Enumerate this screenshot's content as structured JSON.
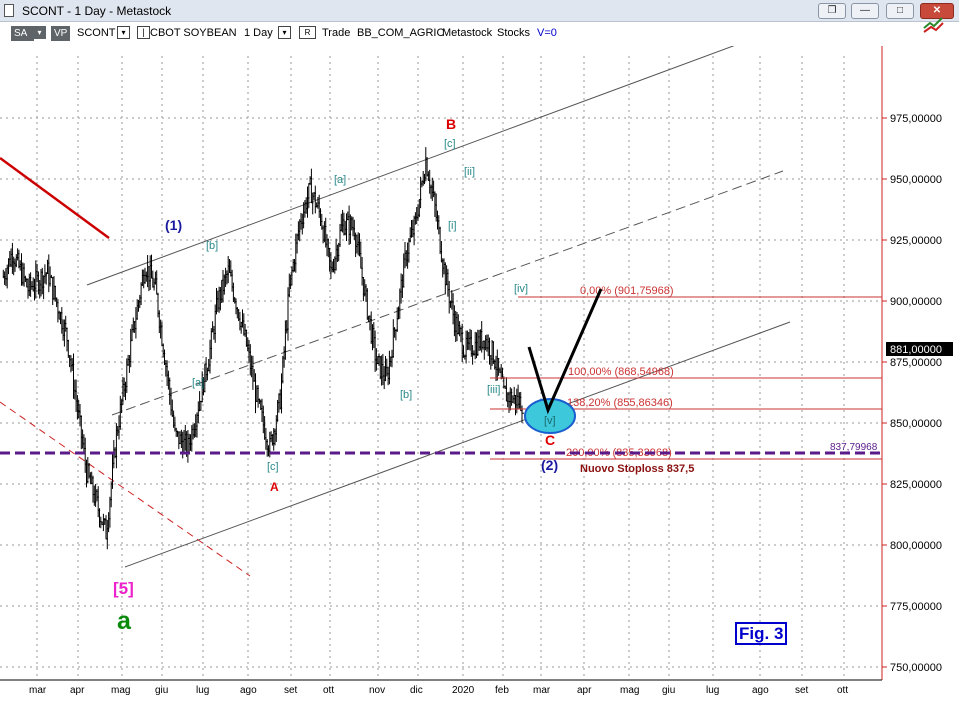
{
  "window": {
    "title": "SCONT - 1 Day - Metastock",
    "buttons": [
      "❐",
      "—",
      "□",
      "✕"
    ]
  },
  "toolbar": {
    "sa_label": "SA",
    "vp_label": "VP",
    "symbol": "SCONT",
    "dropdown_glyph": "▾",
    "description": "CBOT SOYBEAN",
    "period": "1 Day",
    "r_label": "R",
    "trade_label": "Trade",
    "name": "BB_COM_AGRIC",
    "source": "Metastock",
    "type": "Stocks",
    "volume_label": "V=0"
  },
  "chart_data": {
    "type": "candlestick",
    "y_axis": {
      "ticks": [
        "750,00000",
        "775,00000",
        "800,00000",
        "825,00000",
        "850,00000",
        "875,00000",
        "900,00000",
        "925,00000",
        "950,00000",
        "975,00000"
      ],
      "range": [
        742,
        1012
      ],
      "last_price": "881,00000"
    },
    "x_axis": {
      "labels": [
        "mar",
        "apr",
        "mag",
        "giu",
        "lug",
        "ago",
        "set",
        "ott",
        "nov",
        "dic",
        "2020",
        "feb",
        "mar",
        "apr",
        "mag",
        "giu",
        "lug",
        "ago",
        "set",
        "ott"
      ]
    },
    "price_path": [
      [
        1,
        910
      ],
      [
        8,
        920
      ],
      [
        20,
        905
      ],
      [
        35,
        912
      ],
      [
        50,
        885
      ],
      [
        65,
        830
      ],
      [
        80,
        805
      ],
      [
        88,
        845
      ],
      [
        100,
        885
      ],
      [
        110,
        915
      ],
      [
        118,
        905
      ],
      [
        127,
        870
      ],
      [
        133,
        845
      ],
      [
        143,
        840
      ],
      [
        153,
        862
      ],
      [
        160,
        880
      ],
      [
        166,
        900
      ],
      [
        174,
        912
      ],
      [
        180,
        900
      ],
      [
        188,
        882
      ],
      [
        197,
        857
      ],
      [
        206,
        840
      ],
      [
        214,
        860
      ],
      [
        221,
        905
      ],
      [
        229,
        932
      ],
      [
        237,
        946
      ],
      [
        245,
        935
      ],
      [
        253,
        912
      ],
      [
        262,
        932
      ],
      [
        271,
        930
      ],
      [
        280,
        900
      ],
      [
        288,
        875
      ],
      [
        296,
        868
      ],
      [
        304,
        895
      ],
      [
        311,
        920
      ],
      [
        318,
        932
      ],
      [
        326,
        958
      ],
      [
        333,
        938
      ],
      [
        341,
        910
      ],
      [
        348,
        892
      ],
      [
        356,
        880
      ],
      [
        364,
        882
      ],
      [
        371,
        885
      ],
      [
        378,
        878
      ],
      [
        386,
        862
      ],
      [
        393,
        860
      ],
      [
        401,
        858
      ]
    ],
    "levels": [
      {
        "label": "0,00% (901,75968)",
        "value": 901.76
      },
      {
        "label": "100,00% (868,54968)",
        "value": 868.55
      },
      {
        "label": "138,20% (855,86346)",
        "value": 855.86
      },
      {
        "label": "200,00% (835,33968)",
        "value": 835.34
      }
    ],
    "stop_line": {
      "label": "837,79968",
      "value": 837.8
    },
    "stoploss_text": "Nuovo Stoploss 837,5",
    "target_label": "[v]",
    "wave_labels": [
      {
        "text": "B",
        "color": "#dd0000"
      },
      {
        "text": "[c]",
        "color": "#2a8a8a"
      },
      {
        "text": "[ii]",
        "color": "#2a8a8a"
      },
      {
        "text": "[i]",
        "color": "#2a8a8a"
      },
      {
        "text": "[a]",
        "color": "#2a8a8a"
      },
      {
        "text": "[b]",
        "color": "#2a8a8a"
      },
      {
        "text": "(1)",
        "color": "#1a1aa0"
      },
      {
        "text": "[iv]",
        "color": "#2a8a8a"
      },
      {
        "text": "[a]",
        "color": "#2a8a8a"
      },
      {
        "text": "[b]",
        "color": "#2a8a8a"
      },
      {
        "text": "[iii]",
        "color": "#2a8a8a"
      },
      {
        "text": "[c]",
        "color": "#2a8a8a"
      },
      {
        "text": "A",
        "color": "#dd0000"
      },
      {
        "text": "C",
        "color": "#dd0000"
      },
      {
        "text": "(2)",
        "color": "#1a1aa0"
      },
      {
        "text": "[5]",
        "color": "#ee22cc"
      },
      {
        "text": "a",
        "color": "#0a8a0a"
      }
    ],
    "figure_label": "Fig. 3"
  }
}
